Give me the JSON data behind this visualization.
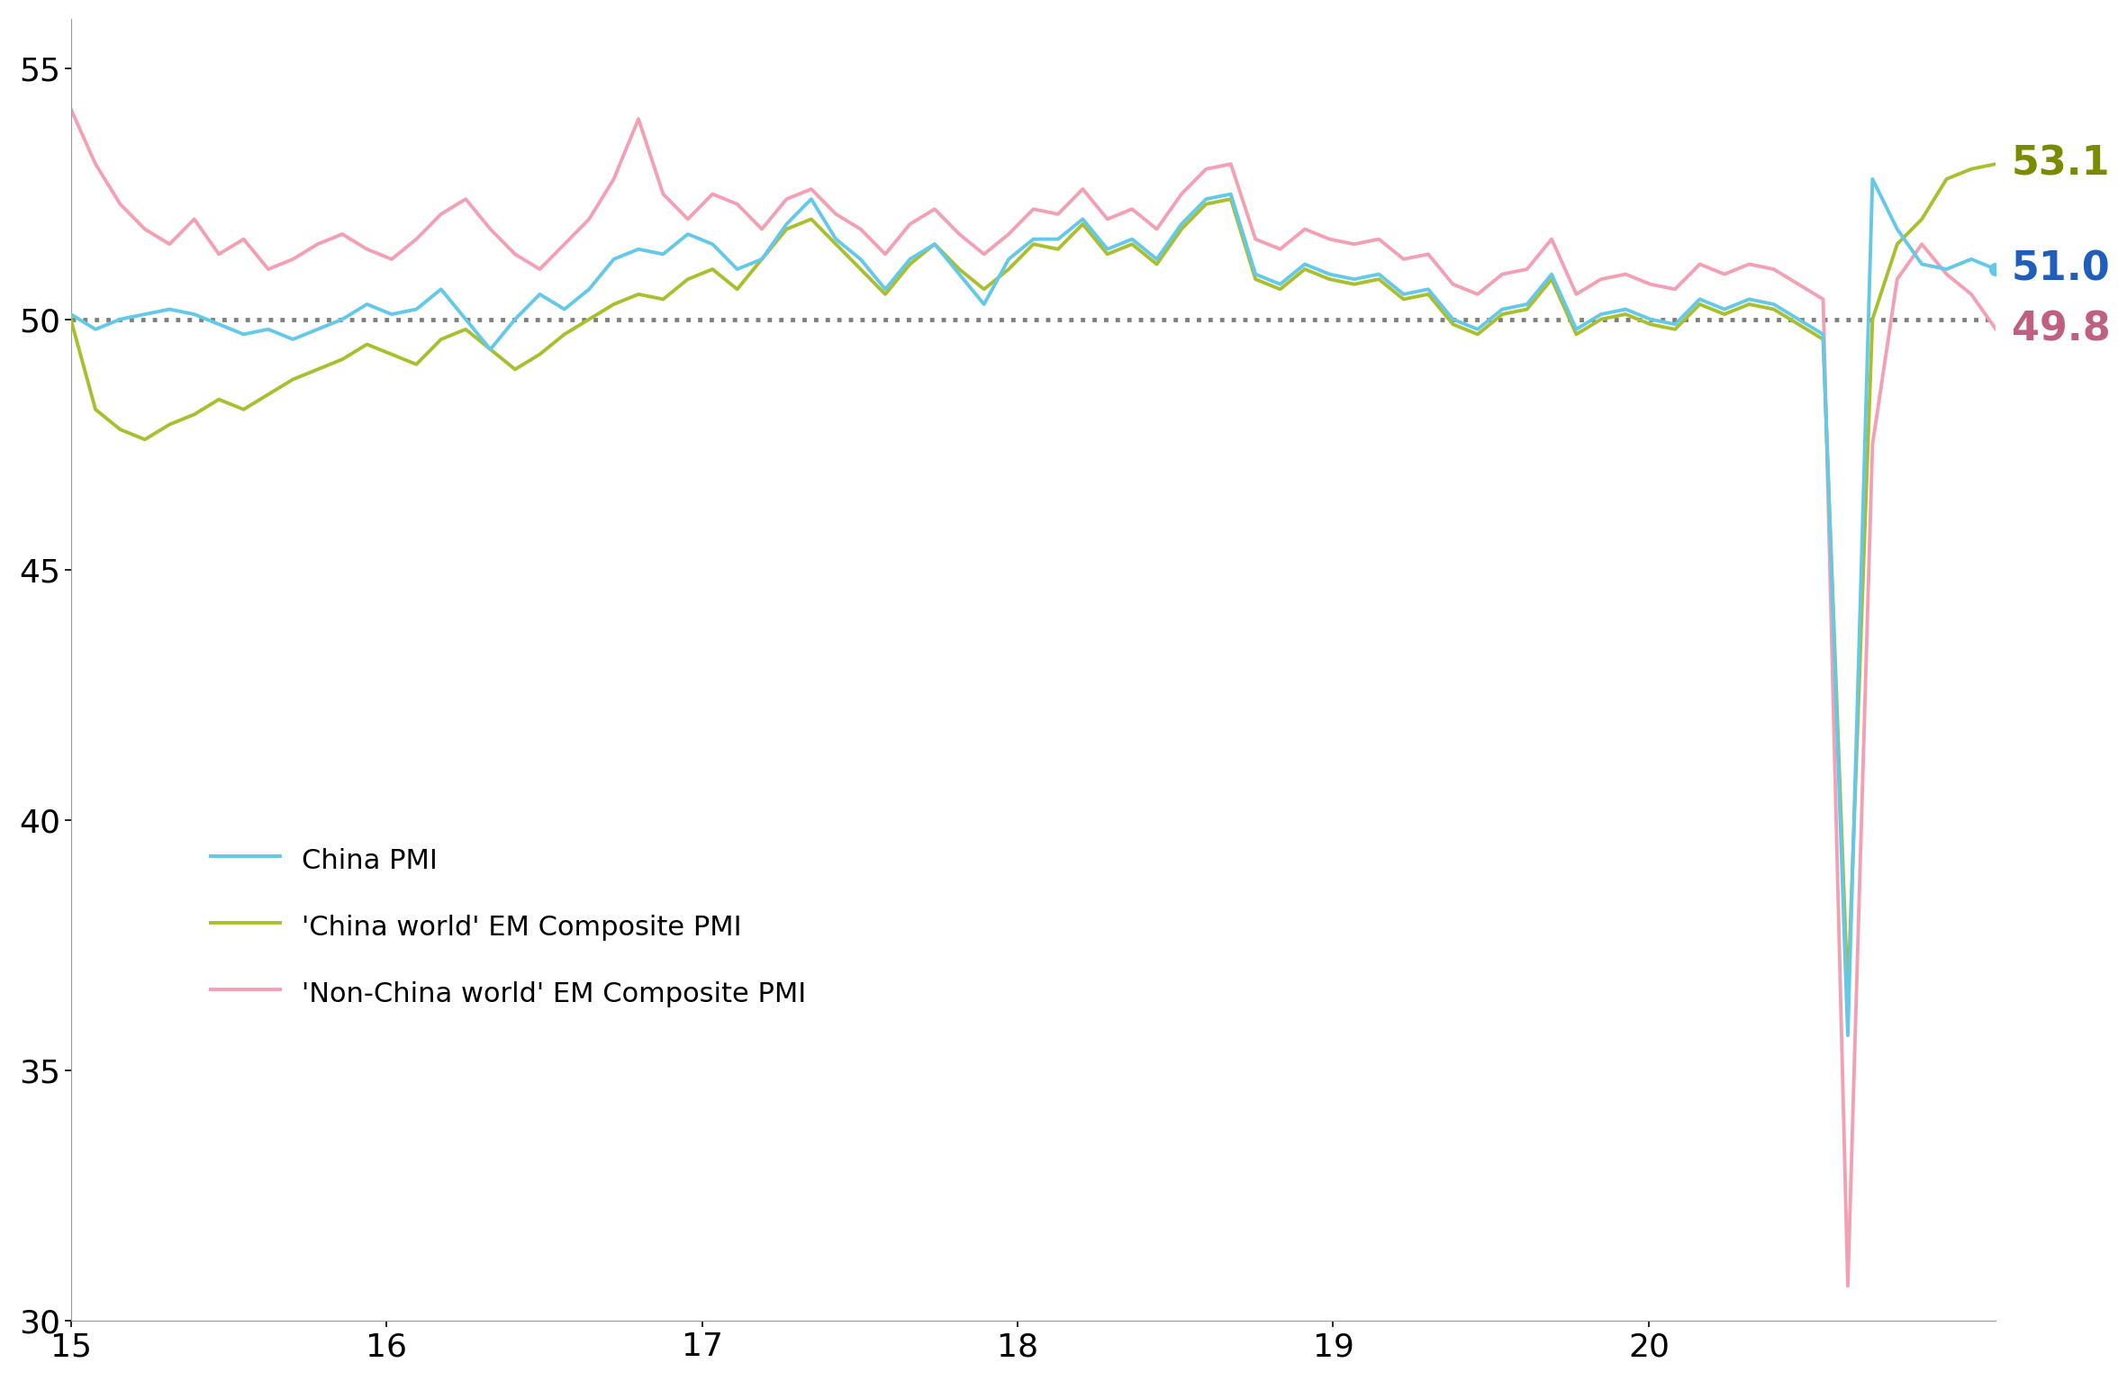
{
  "china_pmi": [
    50.1,
    49.8,
    50.0,
    50.1,
    50.2,
    50.1,
    49.9,
    49.7,
    49.8,
    49.6,
    49.8,
    50.0,
    50.3,
    50.1,
    50.2,
    50.6,
    50.0,
    49.4,
    50.0,
    50.5,
    50.2,
    50.6,
    51.2,
    51.4,
    51.3,
    51.7,
    51.5,
    51.0,
    51.2,
    51.9,
    52.4,
    51.6,
    51.2,
    50.6,
    51.2,
    51.5,
    50.9,
    50.3,
    51.2,
    51.6,
    51.6,
    52.0,
    51.4,
    51.6,
    51.2,
    51.9,
    52.4,
    52.5,
    50.9,
    50.7,
    51.1,
    50.9,
    50.8,
    50.9,
    50.5,
    50.6,
    50.0,
    49.8,
    50.2,
    50.3,
    50.9,
    49.8,
    50.1,
    50.2,
    50.0,
    49.9,
    50.4,
    50.2,
    50.4,
    50.3,
    50.0,
    49.7,
    35.7,
    52.8,
    51.8,
    51.1,
    51.0,
    51.2,
    51.0
  ],
  "china_world_em": [
    50.0,
    48.2,
    47.8,
    47.6,
    47.9,
    48.1,
    48.4,
    48.2,
    48.5,
    48.8,
    49.0,
    49.2,
    49.5,
    49.3,
    49.1,
    49.6,
    49.8,
    49.4,
    49.0,
    49.3,
    49.7,
    50.0,
    50.3,
    50.5,
    50.4,
    50.8,
    51.0,
    50.6,
    51.2,
    51.8,
    52.0,
    51.5,
    51.0,
    50.5,
    51.1,
    51.5,
    51.0,
    50.6,
    51.0,
    51.5,
    51.4,
    51.9,
    51.3,
    51.5,
    51.1,
    51.8,
    52.3,
    52.4,
    50.8,
    50.6,
    51.0,
    50.8,
    50.7,
    50.8,
    50.4,
    50.5,
    49.9,
    49.7,
    50.1,
    50.2,
    50.8,
    49.7,
    50.0,
    50.1,
    49.9,
    49.8,
    50.3,
    50.1,
    50.3,
    50.2,
    49.9,
    49.6,
    36.5,
    50.0,
    51.5,
    52.0,
    52.8,
    53.0,
    53.1
  ],
  "non_china_world_em": [
    54.2,
    53.1,
    52.3,
    51.8,
    51.5,
    52.0,
    51.3,
    51.6,
    51.0,
    51.2,
    51.5,
    51.7,
    51.4,
    51.2,
    51.6,
    52.1,
    52.4,
    51.8,
    51.3,
    51.0,
    51.5,
    52.0,
    52.8,
    54.0,
    52.5,
    52.0,
    52.5,
    52.3,
    51.8,
    52.4,
    52.6,
    52.1,
    51.8,
    51.3,
    51.9,
    52.2,
    51.7,
    51.3,
    51.7,
    52.2,
    52.1,
    52.6,
    52.0,
    52.2,
    51.8,
    52.5,
    53.0,
    53.1,
    51.6,
    51.4,
    51.8,
    51.6,
    51.5,
    51.6,
    51.2,
    51.3,
    50.7,
    50.5,
    50.9,
    51.0,
    51.6,
    50.5,
    50.8,
    50.9,
    50.7,
    50.6,
    51.1,
    50.9,
    51.1,
    51.0,
    50.7,
    50.4,
    30.7,
    47.5,
    50.8,
    51.5,
    50.9,
    50.5,
    49.8
  ],
  "colors": {
    "china": "#64C8E8",
    "china_world": "#AABF2D",
    "non_china_world": "#F4A0B4"
  },
  "annotation_colors": {
    "china_world_label": "#7A8B00",
    "china_label": "#1F5FBB",
    "non_china_label": "#C06080"
  },
  "final_values": {
    "china_world": 53.1,
    "china": 51.0,
    "non_china": 49.8
  },
  "xlim": [
    15.0,
    21.1
  ],
  "ylim": [
    30,
    56
  ],
  "yticks": [
    30,
    35,
    40,
    45,
    50,
    55
  ],
  "xticks": [
    15,
    16,
    17,
    18,
    19,
    20
  ],
  "dashed_line_y": 50,
  "linewidth": 2.8,
  "legend_labels": [
    "China PMI",
    "'China world' EM Composite PMI",
    "'Non-China world' EM Composite PMI"
  ]
}
